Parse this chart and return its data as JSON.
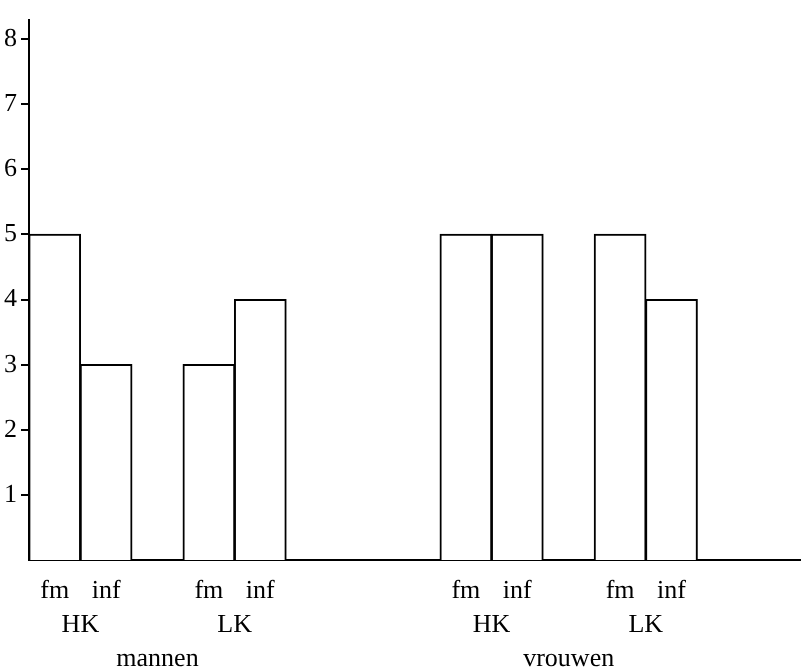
{
  "chart_data": {
    "type": "bar",
    "categories": [
      "fm",
      "inf",
      null,
      "fm",
      "inf",
      null,
      null,
      null,
      "fm",
      "inf",
      null,
      "fm",
      "inf",
      null,
      null
    ],
    "values": [
      5,
      3,
      null,
      3,
      4,
      null,
      null,
      null,
      5,
      5,
      null,
      5,
      4,
      null,
      null
    ],
    "color": "#ffffff",
    "annotations": [
      "HK",
      "LK",
      "HK",
      "LK",
      "mannen",
      "vrouwen"
    ],
    "ylim": [
      0,
      8.3
    ],
    "yticks": [
      1,
      2,
      3,
      4,
      5,
      6,
      7,
      8
    ],
    "grid": false,
    "legend": false
  }
}
